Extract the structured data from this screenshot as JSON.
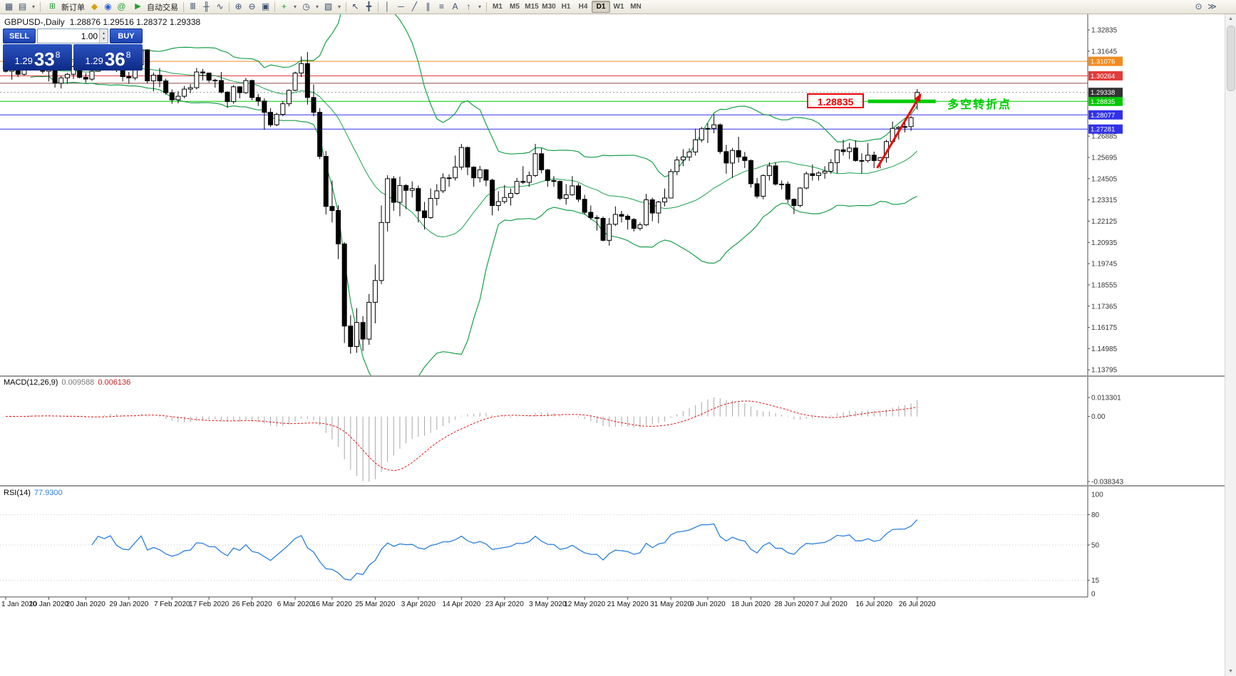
{
  "icons": {
    "collapse": "▴",
    "chart_new": "▦",
    "profiles": "▤",
    "new_order": "⊞",
    "metaeditor": "◆",
    "market": "◉",
    "community": "@",
    "autotrading_play": "▶",
    "bars": "Ⅲ",
    "candles": "╫",
    "line_chart": "∿",
    "zoom_in": "⊕",
    "zoom_out": "⊖",
    "tile": "▣",
    "indicator_add": "+",
    "period_menu": "◷",
    "template_menu": "▧",
    "cursor": "↖",
    "crosshair": "╋",
    "vline": "│",
    "hline": "─",
    "trendline": "╱",
    "channel": "∥",
    "fibo": "≡",
    "text_tool": "A",
    "arrow_tool": "↑",
    "dropdown": "▾",
    "spin_up": "▴",
    "spin_down": "▾",
    "search": "⊙",
    "more": "≫",
    "scroll_up": "▲",
    "scroll_down": "▼"
  },
  "toolbar": {
    "new_order_label": "新订单",
    "autotrading_label": "自动交易",
    "timeframes": [
      "M1",
      "M5",
      "M15",
      "M30",
      "H1",
      "H4",
      "D1",
      "W1",
      "MN"
    ],
    "active_timeframe": "D1"
  },
  "trade_panel": {
    "sell_label": "SELL",
    "buy_label": "BUY",
    "volume": "1.00",
    "sell_price_prefix": "1.29",
    "sell_price_big": "33",
    "sell_price_sup": "8",
    "buy_price_prefix": "1.29",
    "buy_price_big": "36",
    "buy_price_sup": "8"
  },
  "chart": {
    "title": "GBPUSD-,Daily",
    "ohlc_text": "1.28876 1.29516 1.28372 1.29338",
    "price_axis": [
      1.32835,
      1.31645,
      1.30455,
      1.29265,
      1.28075,
      1.26885,
      1.25695,
      1.24505,
      1.23315,
      1.22125,
      1.20935,
      1.19745,
      1.18555,
      1.17365,
      1.16175,
      1.14985,
      1.13795
    ],
    "hlines": [
      {
        "price": 1.31076,
        "color": "#F28A1E",
        "label": "1.31076"
      },
      {
        "price": 1.30264,
        "color": "#E03C3C",
        "label": "1.30264"
      },
      {
        "price": 1.2985,
        "color": "#8B4A4A",
        "label": null
      },
      {
        "price": 1.28835,
        "color": "#00C800",
        "label": "1.28835"
      },
      {
        "price": 1.28077,
        "color": "#3232E8",
        "label": "1.28077"
      },
      {
        "price": 1.27281,
        "color": "#3232E8",
        "label": "1.27281"
      }
    ],
    "bid": {
      "price": 1.29338,
      "label": "1.29338",
      "line_color": "#999999",
      "label_bg": "#333333"
    },
    "annotations": {
      "callout_text": "1.28835",
      "cn_text": "多空转折点",
      "green_bar": {
        "price": 1.28835,
        "bar_start": 140,
        "bar_end": 151,
        "color": "#00CC00",
        "thickness": 5
      },
      "trend_arrow": {
        "from_bar": 141.5,
        "from_price": 1.251,
        "to_bar": 148.7,
        "to_price": 1.293,
        "color": "#EE0000",
        "width": 3
      }
    }
  },
  "macd": {
    "name": "MACD(12,26,9)",
    "main_value": "0.009588",
    "signal_value": "0.006136",
    "axis": {
      "max_label": "0.013301",
      "zero_label": "0.00",
      "min_label": "-0.038343"
    },
    "params": {
      "fast": 12,
      "slow": 26,
      "signal": 9
    }
  },
  "rsi": {
    "name": "RSI(14)",
    "value": "77.9300",
    "period": 14,
    "axis": {
      "max_label": "100",
      "min_label": "0",
      "levels": [
        80,
        50,
        15
      ]
    }
  },
  "time_axis": {
    "labels": [
      {
        "text": "1 Jan 2020",
        "bar": 0
      },
      {
        "text": "10 Jan 2020",
        "bar": 7
      },
      {
        "text": "20 Jan 2020",
        "bar": 13
      },
      {
        "text": "29 Jan 2020",
        "bar": 20
      },
      {
        "text": "7 Feb 2020",
        "bar": 27
      },
      {
        "text": "17 Feb 2020",
        "bar": 33
      },
      {
        "text": "26 Feb 2020",
        "bar": 40
      },
      {
        "text": "6 Mar 2020",
        "bar": 47
      },
      {
        "text": "16 Mar 2020",
        "bar": 53
      },
      {
        "text": "25 Mar 2020",
        "bar": 60
      },
      {
        "text": "3 Apr 2020",
        "bar": 67
      },
      {
        "text": "14 Apr 2020",
        "bar": 74
      },
      {
        "text": "23 Apr 2020",
        "bar": 81
      },
      {
        "text": "3 May 2020",
        "bar": 88
      },
      {
        "text": "12 May 2020",
        "bar": 94
      },
      {
        "text": "21 May 2020",
        "bar": 101
      },
      {
        "text": "31 May 2020",
        "bar": 108
      },
      {
        "text": "9 Jun 2020",
        "bar": 114
      },
      {
        "text": "18 Jun 2020",
        "bar": 121
      },
      {
        "text": "28 Jun 2020",
        "bar": 128
      },
      {
        "text": "7 Jul 2020",
        "bar": 134
      },
      {
        "text": "16 Jul 2020",
        "bar": 141
      },
      {
        "text": "26 Jul 2020",
        "bar": 148
      }
    ]
  },
  "chart_data": {
    "type": "candlestick",
    "symbol": "GBPUSD",
    "timeframe": "Daily",
    "first_bar_date": "1 Jan 2020",
    "ylim": [
      1.13725,
      1.32835
    ],
    "indicators": [
      {
        "name": "Bollinger Bands",
        "period": 20,
        "deviation": 2
      },
      {
        "name": "MACD",
        "fast": 12,
        "slow": 26,
        "signal": 9
      },
      {
        "name": "RSI",
        "period": 14
      }
    ],
    "colors": {
      "bull": "#ffffff",
      "bear": "#000000",
      "outline": "#000000",
      "bands": "#18A04A",
      "macd_hist": "#a8a8a8",
      "macd_signal": "#e01616",
      "rsi": "#2a7fde"
    },
    "candles": [
      [
        1.3095,
        1.3103,
        1.3045,
        1.3052
      ],
      [
        1.3052,
        1.308,
        1.3005,
        1.3068
      ],
      [
        1.3068,
        1.309,
        1.302,
        1.3035
      ],
      [
        1.3035,
        1.3085,
        1.3028,
        1.307
      ],
      [
        1.307,
        1.312,
        1.3055,
        1.3108
      ],
      [
        1.3108,
        1.3125,
        1.306,
        1.309
      ],
      [
        1.309,
        1.3098,
        1.304,
        1.3052
      ],
      [
        1.3052,
        1.307,
        1.2995,
        1.3062
      ],
      [
        1.3062,
        1.3068,
        1.296,
        1.2985
      ],
      [
        1.2985,
        1.3025,
        1.2955,
        1.3015
      ],
      [
        1.3015,
        1.3042,
        1.2982,
        1.3035
      ],
      [
        1.3035,
        1.3085,
        1.3008,
        1.3078
      ],
      [
        1.3078,
        1.3118,
        1.3012,
        1.3018
      ],
      [
        1.3018,
        1.3042,
        1.2988,
        1.3008
      ],
      [
        1.3008,
        1.3085,
        1.2998,
        1.3052
      ],
      [
        1.3052,
        1.3155,
        1.3048,
        1.3142
      ],
      [
        1.3142,
        1.3165,
        1.3095,
        1.3122
      ],
      [
        1.3122,
        1.3172,
        1.3108,
        1.3155
      ],
      [
        1.3155,
        1.316,
        1.3048,
        1.3065
      ],
      [
        1.3065,
        1.308,
        1.2995,
        1.3022
      ],
      [
        1.3022,
        1.3048,
        1.2982,
        1.3015
      ],
      [
        1.3015,
        1.3102,
        1.3002,
        1.3088
      ],
      [
        1.3088,
        1.3185,
        1.308,
        1.3172
      ],
      [
        1.3172,
        1.3175,
        1.2985,
        1.2998
      ],
      [
        1.2998,
        1.3045,
        1.294,
        1.303
      ],
      [
        1.303,
        1.307,
        1.2963,
        1.2998
      ],
      [
        1.2998,
        1.301,
        1.292,
        1.2932
      ],
      [
        1.2932,
        1.295,
        1.287,
        1.2892
      ],
      [
        1.2892,
        1.294,
        1.2872,
        1.2912
      ],
      [
        1.2912,
        1.297,
        1.29,
        1.2952
      ],
      [
        1.2952,
        1.298,
        1.293,
        1.296
      ],
      [
        1.296,
        1.307,
        1.295,
        1.3048
      ],
      [
        1.3048,
        1.3065,
        1.3,
        1.3042
      ],
      [
        1.3042,
        1.3045,
        1.299,
        1.3002
      ],
      [
        1.3002,
        1.301,
        1.296,
        1.3
      ],
      [
        1.3,
        1.3048,
        1.2928,
        1.2935
      ],
      [
        1.2935,
        1.294,
        1.2848,
        1.2882
      ],
      [
        1.2882,
        1.2975,
        1.287,
        1.2965
      ],
      [
        1.2965,
        1.2968,
        1.29,
        1.2932
      ],
      [
        1.2932,
        1.3015,
        1.2925,
        1.3
      ],
      [
        1.3,
        1.3005,
        1.289,
        1.2905
      ],
      [
        1.2905,
        1.2925,
        1.2858,
        1.2885
      ],
      [
        1.2885,
        1.29,
        1.2725,
        1.2822
      ],
      [
        1.2822,
        1.2845,
        1.274,
        1.2752
      ],
      [
        1.2752,
        1.282,
        1.2745,
        1.281
      ],
      [
        1.281,
        1.2885,
        1.28,
        1.287
      ],
      [
        1.287,
        1.295,
        1.2855,
        1.2945
      ],
      [
        1.2945,
        1.305,
        1.294,
        1.3042
      ],
      [
        1.3042,
        1.3135,
        1.302,
        1.3095
      ],
      [
        1.3095,
        1.316,
        1.2865,
        1.2905
      ],
      [
        1.2905,
        1.2978,
        1.28,
        1.2822
      ],
      [
        1.2822,
        1.2845,
        1.256,
        1.2575
      ],
      [
        1.2575,
        1.2605,
        1.225,
        1.2295
      ],
      [
        1.2295,
        1.244,
        1.2205,
        1.2272
      ],
      [
        1.2272,
        1.2302,
        1.2,
        1.2085
      ],
      [
        1.2085,
        1.2095,
        1.153,
        1.1625
      ],
      [
        1.1625,
        1.1685,
        1.147,
        1.151
      ],
      [
        1.151,
        1.1725,
        1.1475,
        1.1645
      ],
      [
        1.1645,
        1.168,
        1.1485,
        1.1552
      ],
      [
        1.1552,
        1.1805,
        1.152,
        1.1758
      ],
      [
        1.1758,
        1.197,
        1.164,
        1.188
      ],
      [
        1.188,
        1.23,
        1.186,
        1.2205
      ],
      [
        1.2205,
        1.247,
        1.2155,
        1.245
      ],
      [
        1.245,
        1.2465,
        1.227,
        1.2318
      ],
      [
        1.2318,
        1.2462,
        1.224,
        1.2412
      ],
      [
        1.2412,
        1.242,
        1.228,
        1.2385
      ],
      [
        1.2385,
        1.2435,
        1.2345,
        1.2395
      ],
      [
        1.2395,
        1.2412,
        1.2205,
        1.227
      ],
      [
        1.227,
        1.232,
        1.2165,
        1.2232
      ],
      [
        1.2232,
        1.2395,
        1.2225,
        1.234
      ],
      [
        1.234,
        1.242,
        1.23,
        1.2382
      ],
      [
        1.2382,
        1.248,
        1.237,
        1.2455
      ],
      [
        1.2455,
        1.2475,
        1.2405,
        1.2455
      ],
      [
        1.2455,
        1.258,
        1.244,
        1.2515
      ],
      [
        1.2515,
        1.2645,
        1.25,
        1.2625
      ],
      [
        1.2625,
        1.263,
        1.247,
        1.2515
      ],
      [
        1.2515,
        1.252,
        1.2405,
        1.2455
      ],
      [
        1.2455,
        1.2522,
        1.243,
        1.25
      ],
      [
        1.25,
        1.2505,
        1.2408,
        1.2442
      ],
      [
        1.2442,
        1.245,
        1.2245,
        1.23
      ],
      [
        1.23,
        1.238,
        1.227,
        1.2322
      ],
      [
        1.2322,
        1.2415,
        1.231,
        1.2345
      ],
      [
        1.2345,
        1.2395,
        1.23,
        1.2368
      ],
      [
        1.2368,
        1.2455,
        1.236,
        1.2435
      ],
      [
        1.2435,
        1.252,
        1.242,
        1.243
      ],
      [
        1.243,
        1.249,
        1.2405,
        1.2468
      ],
      [
        1.2468,
        1.2645,
        1.246,
        1.259
      ],
      [
        1.259,
        1.262,
        1.248,
        1.25
      ],
      [
        1.25,
        1.2505,
        1.2405,
        1.244
      ],
      [
        1.244,
        1.2465,
        1.2405,
        1.2435
      ],
      [
        1.2435,
        1.244,
        1.233,
        1.234
      ],
      [
        1.234,
        1.242,
        1.2305,
        1.236
      ],
      [
        1.236,
        1.2465,
        1.2355,
        1.241
      ],
      [
        1.241,
        1.2425,
        1.232,
        1.2335
      ],
      [
        1.2335,
        1.236,
        1.225,
        1.2262
      ],
      [
        1.2262,
        1.23,
        1.222,
        1.2232
      ],
      [
        1.2232,
        1.2245,
        1.216,
        1.2228
      ],
      [
        1.2228,
        1.2238,
        1.21,
        1.2105
      ],
      [
        1.2105,
        1.223,
        1.2075,
        1.2195
      ],
      [
        1.2195,
        1.2295,
        1.2185,
        1.225
      ],
      [
        1.225,
        1.227,
        1.2205,
        1.224
      ],
      [
        1.224,
        1.225,
        1.2165,
        1.2222
      ],
      [
        1.2222,
        1.223,
        1.2155,
        1.2172
      ],
      [
        1.2172,
        1.2205,
        1.216,
        1.2192
      ],
      [
        1.2192,
        1.2365,
        1.2185,
        1.2332
      ],
      [
        1.2332,
        1.2345,
        1.2212,
        1.2258
      ],
      [
        1.2258,
        1.2325,
        1.22,
        1.232
      ],
      [
        1.232,
        1.2395,
        1.2295,
        1.2342
      ],
      [
        1.2342,
        1.2505,
        1.234,
        1.249
      ],
      [
        1.249,
        1.2575,
        1.247,
        1.2555
      ],
      [
        1.2555,
        1.2615,
        1.252,
        1.2572
      ],
      [
        1.2572,
        1.262,
        1.255,
        1.26
      ],
      [
        1.26,
        1.273,
        1.258,
        1.2668
      ],
      [
        1.2668,
        1.274,
        1.2655,
        1.273
      ],
      [
        1.273,
        1.276,
        1.265,
        1.2732
      ],
      [
        1.2732,
        1.2812,
        1.2705,
        1.2752
      ],
      [
        1.2752,
        1.276,
        1.259,
        1.2602
      ],
      [
        1.2602,
        1.264,
        1.2478,
        1.2538
      ],
      [
        1.2538,
        1.2622,
        1.2455,
        1.2608
      ],
      [
        1.2608,
        1.2685,
        1.254,
        1.2572
      ],
      [
        1.2572,
        1.26,
        1.251,
        1.2552
      ],
      [
        1.2552,
        1.2558,
        1.24,
        1.2422
      ],
      [
        1.2422,
        1.2455,
        1.234,
        1.2352
      ],
      [
        1.2352,
        1.2475,
        1.2335,
        1.2468
      ],
      [
        1.2468,
        1.2542,
        1.244,
        1.2522
      ],
      [
        1.2522,
        1.2542,
        1.2412,
        1.242
      ],
      [
        1.242,
        1.244,
        1.239,
        1.242
      ],
      [
        1.242,
        1.2435,
        1.2315,
        1.2335
      ],
      [
        1.2335,
        1.234,
        1.2252,
        1.23
      ],
      [
        1.23,
        1.2402,
        1.229,
        1.2398
      ],
      [
        1.2398,
        1.249,
        1.239,
        1.2478
      ],
      [
        1.2478,
        1.253,
        1.244,
        1.2468
      ],
      [
        1.2468,
        1.2492,
        1.244,
        1.2482
      ],
      [
        1.2482,
        1.252,
        1.245,
        1.2492
      ],
      [
        1.2492,
        1.256,
        1.2478,
        1.254
      ],
      [
        1.254,
        1.2615,
        1.248,
        1.2612
      ],
      [
        1.2612,
        1.2668,
        1.258,
        1.2602
      ],
      [
        1.2602,
        1.265,
        1.256,
        1.2622
      ],
      [
        1.2622,
        1.2665,
        1.2545,
        1.2552
      ],
      [
        1.2552,
        1.2593,
        1.248,
        1.2552
      ],
      [
        1.2552,
        1.265,
        1.254,
        1.2582
      ],
      [
        1.2582,
        1.2602,
        1.251,
        1.2552
      ],
      [
        1.2552,
        1.2572,
        1.2508,
        1.2568
      ],
      [
        1.2568,
        1.2668,
        1.254,
        1.2658
      ],
      [
        1.2658,
        1.277,
        1.2645,
        1.2732
      ],
      [
        1.2732,
        1.2745,
        1.267,
        1.2738
      ],
      [
        1.2738,
        1.2765,
        1.271,
        1.2742
      ],
      [
        1.2742,
        1.2802,
        1.2718,
        1.2792
      ],
      [
        1.28876,
        1.29516,
        1.28372,
        1.29338
      ]
    ]
  }
}
